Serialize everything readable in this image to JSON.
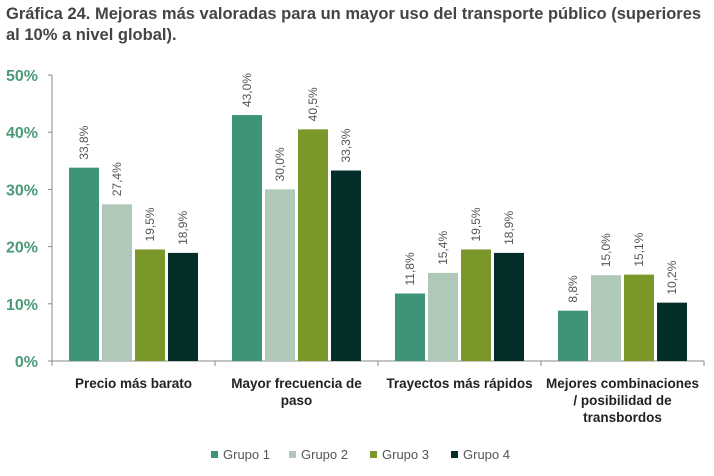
{
  "chart_data": {
    "type": "bar",
    "title": "Gráfica 24. Mejoras más valoradas para un mayor uso del transporte público (superiores al 10% a nivel global).",
    "categories": [
      [
        "Precio más barato"
      ],
      [
        "Mayor frecuencia de",
        "paso"
      ],
      [
        "Trayectos más rápidos"
      ],
      [
        "Mejores combinaciones",
        "/ posibilidad de",
        "transbordos"
      ]
    ],
    "series": [
      {
        "name": "Grupo 1",
        "color": "#3d9478",
        "values": [
          33.8,
          43.0,
          11.8,
          8.8
        ],
        "labels": [
          "33,8%",
          "43,0%",
          "11,8%",
          "8,8%"
        ]
      },
      {
        "name": "Grupo 2",
        "color": "#b0c8b8",
        "values": [
          27.4,
          30.0,
          15.4,
          15.0
        ],
        "labels": [
          "27,4%",
          "30,0%",
          "15,4%",
          "15,0%"
        ]
      },
      {
        "name": "Grupo 3",
        "color": "#7a982a",
        "values": [
          19.5,
          40.5,
          19.5,
          15.1
        ],
        "labels": [
          "19,5%",
          "40,5%",
          "19,5%",
          "15,1%"
        ]
      },
      {
        "name": "Grupo 4",
        "color": "#032d29",
        "values": [
          18.9,
          33.3,
          18.9,
          10.2
        ],
        "labels": [
          "18,9%",
          "33,3%",
          "18,9%",
          "10,2%"
        ]
      }
    ],
    "yticks": [
      "0%",
      "10%",
      "20%",
      "30%",
      "40%",
      "50%"
    ],
    "ylim": [
      0,
      50
    ],
    "grid": false,
    "legend": "bottom",
    "tick_color": "#4a9a78"
  }
}
